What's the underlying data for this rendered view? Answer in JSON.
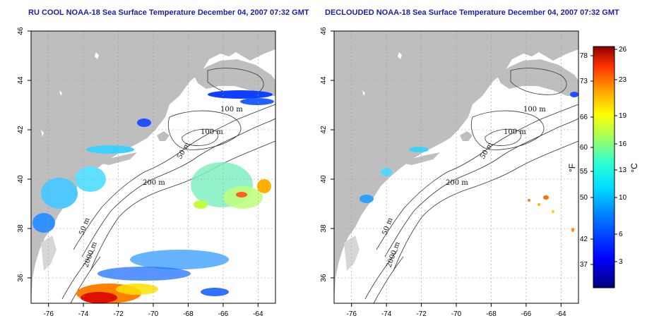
{
  "titles": {
    "left": "RU COOL NOAA-18 Sea Surface Temperature December 04, 2007 07:32 GMT",
    "right": "DECLOUDED NOAA-18 Sea Surface Temperature December 04, 2007 07:32 GMT"
  },
  "axes": {
    "lat_ticks": [
      "46",
      "44",
      "42",
      "40",
      "38",
      "36"
    ],
    "lon_ticks": [
      "-76",
      "-74",
      "-72",
      "-70",
      "-68",
      "-66",
      "-64"
    ],
    "lon_range": [
      -77,
      -63
    ],
    "lat_range": [
      35,
      46
    ]
  },
  "contour_labels": {
    "left": [
      "100 m",
      "100 m",
      "50 m",
      "200 m",
      "50 m",
      "2000 m"
    ],
    "right": [
      "100 m",
      "100 m",
      "50 m",
      "200 m",
      "50 m",
      "2000 m"
    ]
  },
  "colorbar": {
    "fahrenheit_ticks": [
      "78",
      "73",
      "66",
      "60",
      "55",
      "50",
      "42",
      "37"
    ],
    "celsius_ticks": [
      "26",
      "23",
      "19",
      "16",
      "13",
      "10",
      "6",
      "3"
    ],
    "fahrenheit_unit": "°F",
    "celsius_unit": "°C",
    "colors": [
      "#00007a",
      "#0000ff",
      "#0080ff",
      "#00e0ff",
      "#30ffd0",
      "#a0ff60",
      "#ffff00",
      "#ffa000",
      "#ff3000",
      "#8b0000"
    ]
  },
  "colors": {
    "land": "#bebebe",
    "title": "#1c1ca8"
  }
}
